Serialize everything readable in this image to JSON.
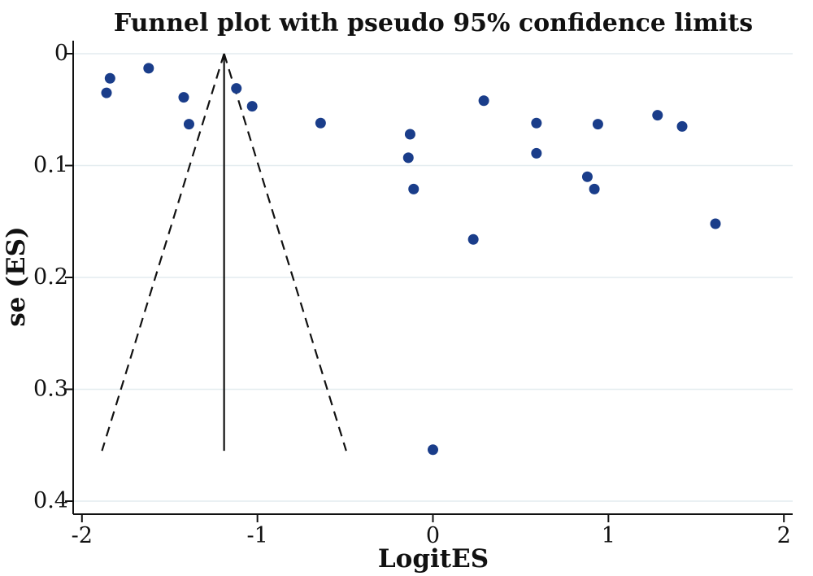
{
  "chart_data": {
    "type": "scatter",
    "title": "Funnel plot with pseudo 95% confidence limits",
    "xlabel": "LogitES",
    "ylabel": "se (ES)",
    "xlim": [
      -2.05,
      2.05
    ],
    "ylim": [
      0,
      0.4
    ],
    "y_inverted": true,
    "x_ticks": [
      -2,
      -1,
      0,
      1,
      2
    ],
    "x_tick_labels": [
      "-2",
      "-1",
      "0",
      "1",
      "2"
    ],
    "y_ticks": [
      0,
      0.1,
      0.2,
      0.3,
      0.4
    ],
    "y_tick_labels": [
      "0",
      "0.1",
      "0.2",
      "0.3",
      "0.4"
    ],
    "grid": "horizontal",
    "colors": {
      "points": "#1a3d8a",
      "grid": "#e4ecef",
      "lines": "#111111"
    },
    "pooled_effect": -1.19,
    "funnel_max_se": 0.355,
    "series": [
      {
        "values": [
          {
            "x": -1.84,
            "y": 0.022
          },
          {
            "x": -1.86,
            "y": 0.035
          },
          {
            "x": -1.62,
            "y": 0.013
          },
          {
            "x": -1.42,
            "y": 0.039
          },
          {
            "x": -1.39,
            "y": 0.063
          },
          {
            "x": -1.12,
            "y": 0.031
          },
          {
            "x": -1.03,
            "y": 0.047
          },
          {
            "x": -0.64,
            "y": 0.062
          },
          {
            "x": -0.13,
            "y": 0.072
          },
          {
            "x": -0.14,
            "y": 0.093
          },
          {
            "x": -0.11,
            "y": 0.121
          },
          {
            "x": 0.29,
            "y": 0.042
          },
          {
            "x": 0.23,
            "y": 0.166
          },
          {
            "x": 0.0,
            "y": 0.354
          },
          {
            "x": 0.59,
            "y": 0.062
          },
          {
            "x": 0.59,
            "y": 0.089
          },
          {
            "x": 0.94,
            "y": 0.063
          },
          {
            "x": 0.88,
            "y": 0.11
          },
          {
            "x": 0.92,
            "y": 0.121
          },
          {
            "x": 1.28,
            "y": 0.055
          },
          {
            "x": 1.42,
            "y": 0.065
          },
          {
            "x": 1.61,
            "y": 0.152
          }
        ]
      }
    ]
  }
}
